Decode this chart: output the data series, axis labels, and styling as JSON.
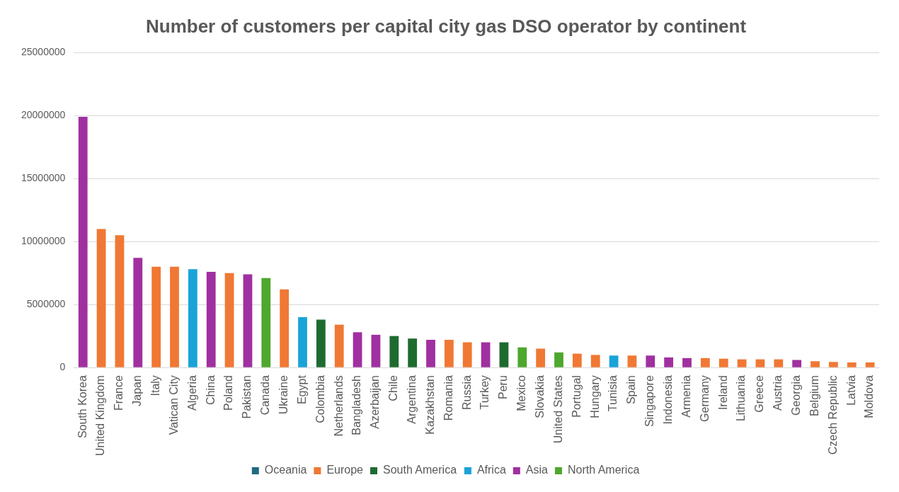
{
  "chart_data": {
    "type": "bar",
    "title": "Number of customers per capital city gas DSO operator by continent",
    "categories": [
      "South Korea",
      "United Kingdom",
      "France",
      "Japan",
      "Italy",
      "Vatican City",
      "Algeria",
      "China",
      "Poland",
      "Pakistan",
      "Canada",
      "Ukraine",
      "Egypt",
      "Colombia",
      "Netherlands",
      "Bangladesh",
      "Azerbaijan",
      "Chile",
      "Argentina",
      "Kazakhstan",
      "Romania",
      "Russia",
      "Turkey",
      "Peru",
      "Mexico",
      "Slovakia",
      "United States",
      "Portugal",
      "Hungary",
      "Tunisia",
      "Spain",
      "Singapore",
      "Indonesia",
      "Armenia",
      "Germany",
      "Ireland",
      "Lithuania",
      "Greece",
      "Austria",
      "Georgia",
      "Belgium",
      "Czech Republic",
      "Latvia",
      "Moldova"
    ],
    "series": [
      {
        "name": "Oceania",
        "color": "#1f6b82",
        "values": [
          null,
          null,
          null,
          null,
          null,
          null,
          null,
          null,
          null,
          null,
          null,
          null,
          null,
          null,
          null,
          null,
          null,
          null,
          null,
          null,
          null,
          null,
          null,
          null,
          null,
          null,
          null,
          null,
          null,
          null,
          null,
          null,
          null,
          null,
          null,
          null,
          null,
          null,
          null,
          null,
          null,
          null,
          null,
          null
        ]
      },
      {
        "name": "Europe",
        "color": "#f07834",
        "values": [
          null,
          11000000,
          10500000,
          null,
          8000000,
          8000000,
          null,
          null,
          7500000,
          null,
          null,
          6200000,
          null,
          null,
          3400000,
          null,
          null,
          null,
          null,
          null,
          2200000,
          2000000,
          null,
          null,
          null,
          1500000,
          null,
          1100000,
          1000000,
          null,
          950000,
          null,
          null,
          null,
          750000,
          700000,
          650000,
          650000,
          650000,
          null,
          500000,
          450000,
          400000,
          400000
        ]
      },
      {
        "name": "South America",
        "color": "#1e6b30",
        "values": [
          null,
          null,
          null,
          null,
          null,
          null,
          null,
          null,
          null,
          null,
          null,
          null,
          null,
          3800000,
          null,
          null,
          null,
          2500000,
          2300000,
          null,
          null,
          null,
          null,
          2000000,
          null,
          null,
          null,
          null,
          null,
          null,
          null,
          null,
          null,
          null,
          null,
          null,
          null,
          null,
          null,
          null,
          null,
          null,
          null,
          null
        ]
      },
      {
        "name": "Africa",
        "color": "#1aa3d8",
        "values": [
          null,
          null,
          null,
          null,
          null,
          null,
          7800000,
          null,
          null,
          null,
          null,
          null,
          4000000,
          null,
          null,
          null,
          null,
          null,
          null,
          null,
          null,
          null,
          null,
          null,
          null,
          null,
          null,
          null,
          null,
          950000,
          null,
          null,
          null,
          null,
          null,
          null,
          null,
          null,
          null,
          null,
          null,
          null,
          null,
          null
        ]
      },
      {
        "name": "Asia",
        "color": "#a030a0",
        "values": [
          19900000,
          null,
          null,
          8700000,
          null,
          null,
          null,
          7600000,
          null,
          7400000,
          null,
          null,
          null,
          null,
          null,
          2800000,
          2600000,
          null,
          null,
          2200000,
          null,
          null,
          2000000,
          null,
          null,
          null,
          null,
          null,
          null,
          null,
          null,
          950000,
          800000,
          750000,
          null,
          null,
          null,
          null,
          null,
          600000,
          null,
          null,
          null,
          null
        ]
      },
      {
        "name": "North America",
        "color": "#4ea72e",
        "values": [
          null,
          null,
          null,
          null,
          null,
          null,
          null,
          null,
          null,
          null,
          7100000,
          null,
          null,
          null,
          null,
          null,
          null,
          null,
          null,
          null,
          null,
          null,
          null,
          null,
          1600000,
          null,
          1200000,
          null,
          null,
          null,
          null,
          null,
          null,
          null,
          null,
          null,
          null,
          null,
          null,
          null,
          null,
          null,
          null,
          null
        ]
      }
    ],
    "stacked": true,
    "ylim": [
      0,
      25000000
    ],
    "yticks": [
      0,
      5000000,
      10000000,
      15000000,
      20000000,
      25000000
    ],
    "grid": "y",
    "legend": "bottom"
  }
}
